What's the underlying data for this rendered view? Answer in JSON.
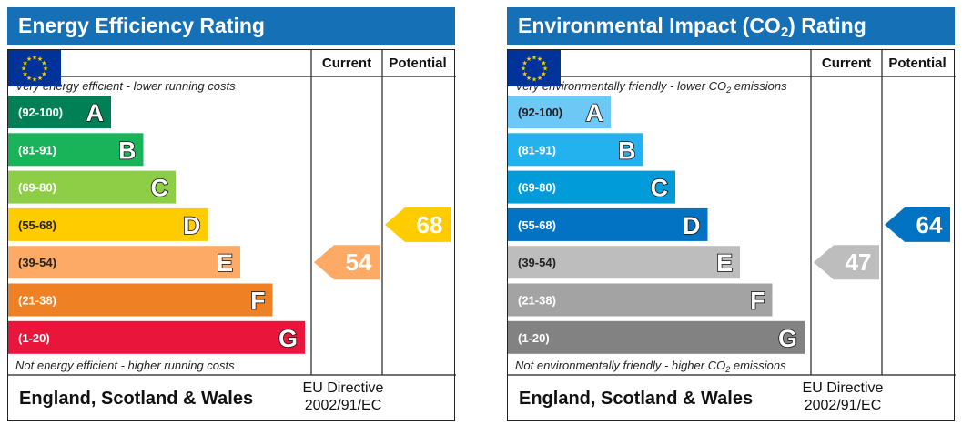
{
  "chart_data": [
    {
      "type": "bar",
      "title": "Energy Efficiency Rating",
      "columns": [
        "Current",
        "Potential"
      ],
      "top_note": "Very energy efficient - lower running costs",
      "bottom_note": "Not energy efficient - higher running costs",
      "bands": [
        {
          "letter": "A",
          "range": "(92-100)",
          "color": "#008054"
        },
        {
          "letter": "B",
          "range": "(81-91)",
          "color": "#19b459"
        },
        {
          "letter": "C",
          "range": "(69-80)",
          "color": "#8dce46"
        },
        {
          "letter": "D",
          "range": "(55-68)",
          "color": "#ffcc00"
        },
        {
          "letter": "E",
          "range": "(39-54)",
          "color": "#fcaa65"
        },
        {
          "letter": "F",
          "range": "(21-38)",
          "color": "#ef8023"
        },
        {
          "letter": "G",
          "range": "(1-20)",
          "color": "#e9153b"
        }
      ],
      "current": {
        "value": 54,
        "color": "#fcaa65"
      },
      "potential": {
        "value": 68,
        "color": "#ffcc00"
      },
      "footer_region": "England, Scotland & Wales",
      "footer_directive": [
        "EU Directive",
        "2002/91/EC"
      ]
    },
    {
      "type": "bar",
      "title": "Environmental Impact (CO2) Rating",
      "title_parts": {
        "pre": "Environmental Impact (CO",
        "sub": "2",
        "post": ") Rating"
      },
      "columns": [
        "Current",
        "Potential"
      ],
      "top_note": "Very environmentally friendly - lower CO2 emissions",
      "top_note_parts": {
        "pre": "Very environmentally friendly - lower CO",
        "sub": "2",
        "post": " emissions"
      },
      "bottom_note": "Not environmentally friendly - higher CO2 emissions",
      "bottom_note_parts": {
        "pre": "Not environmentally friendly - higher CO",
        "sub": "2",
        "post": " emissions"
      },
      "bands": [
        {
          "letter": "A",
          "range": "(92-100)",
          "color": "#6dc8f6"
        },
        {
          "letter": "B",
          "range": "(81-91)",
          "color": "#24b2ef"
        },
        {
          "letter": "C",
          "range": "(69-80)",
          "color": "#019bd9"
        },
        {
          "letter": "D",
          "range": "(55-68)",
          "color": "#0273c2"
        },
        {
          "letter": "E",
          "range": "(39-54)",
          "color": "#bdbdbd"
        },
        {
          "letter": "F",
          "range": "(21-38)",
          "color": "#a3a3a3"
        },
        {
          "letter": "G",
          "range": "(1-20)",
          "color": "#828282"
        }
      ],
      "current": {
        "value": 47,
        "color": "#bdbdbd"
      },
      "potential": {
        "value": 64,
        "color": "#0273c2"
      },
      "footer_region": "England, Scotland & Wales",
      "footer_directive": [
        "EU Directive",
        "2002/91/EC"
      ]
    }
  ]
}
